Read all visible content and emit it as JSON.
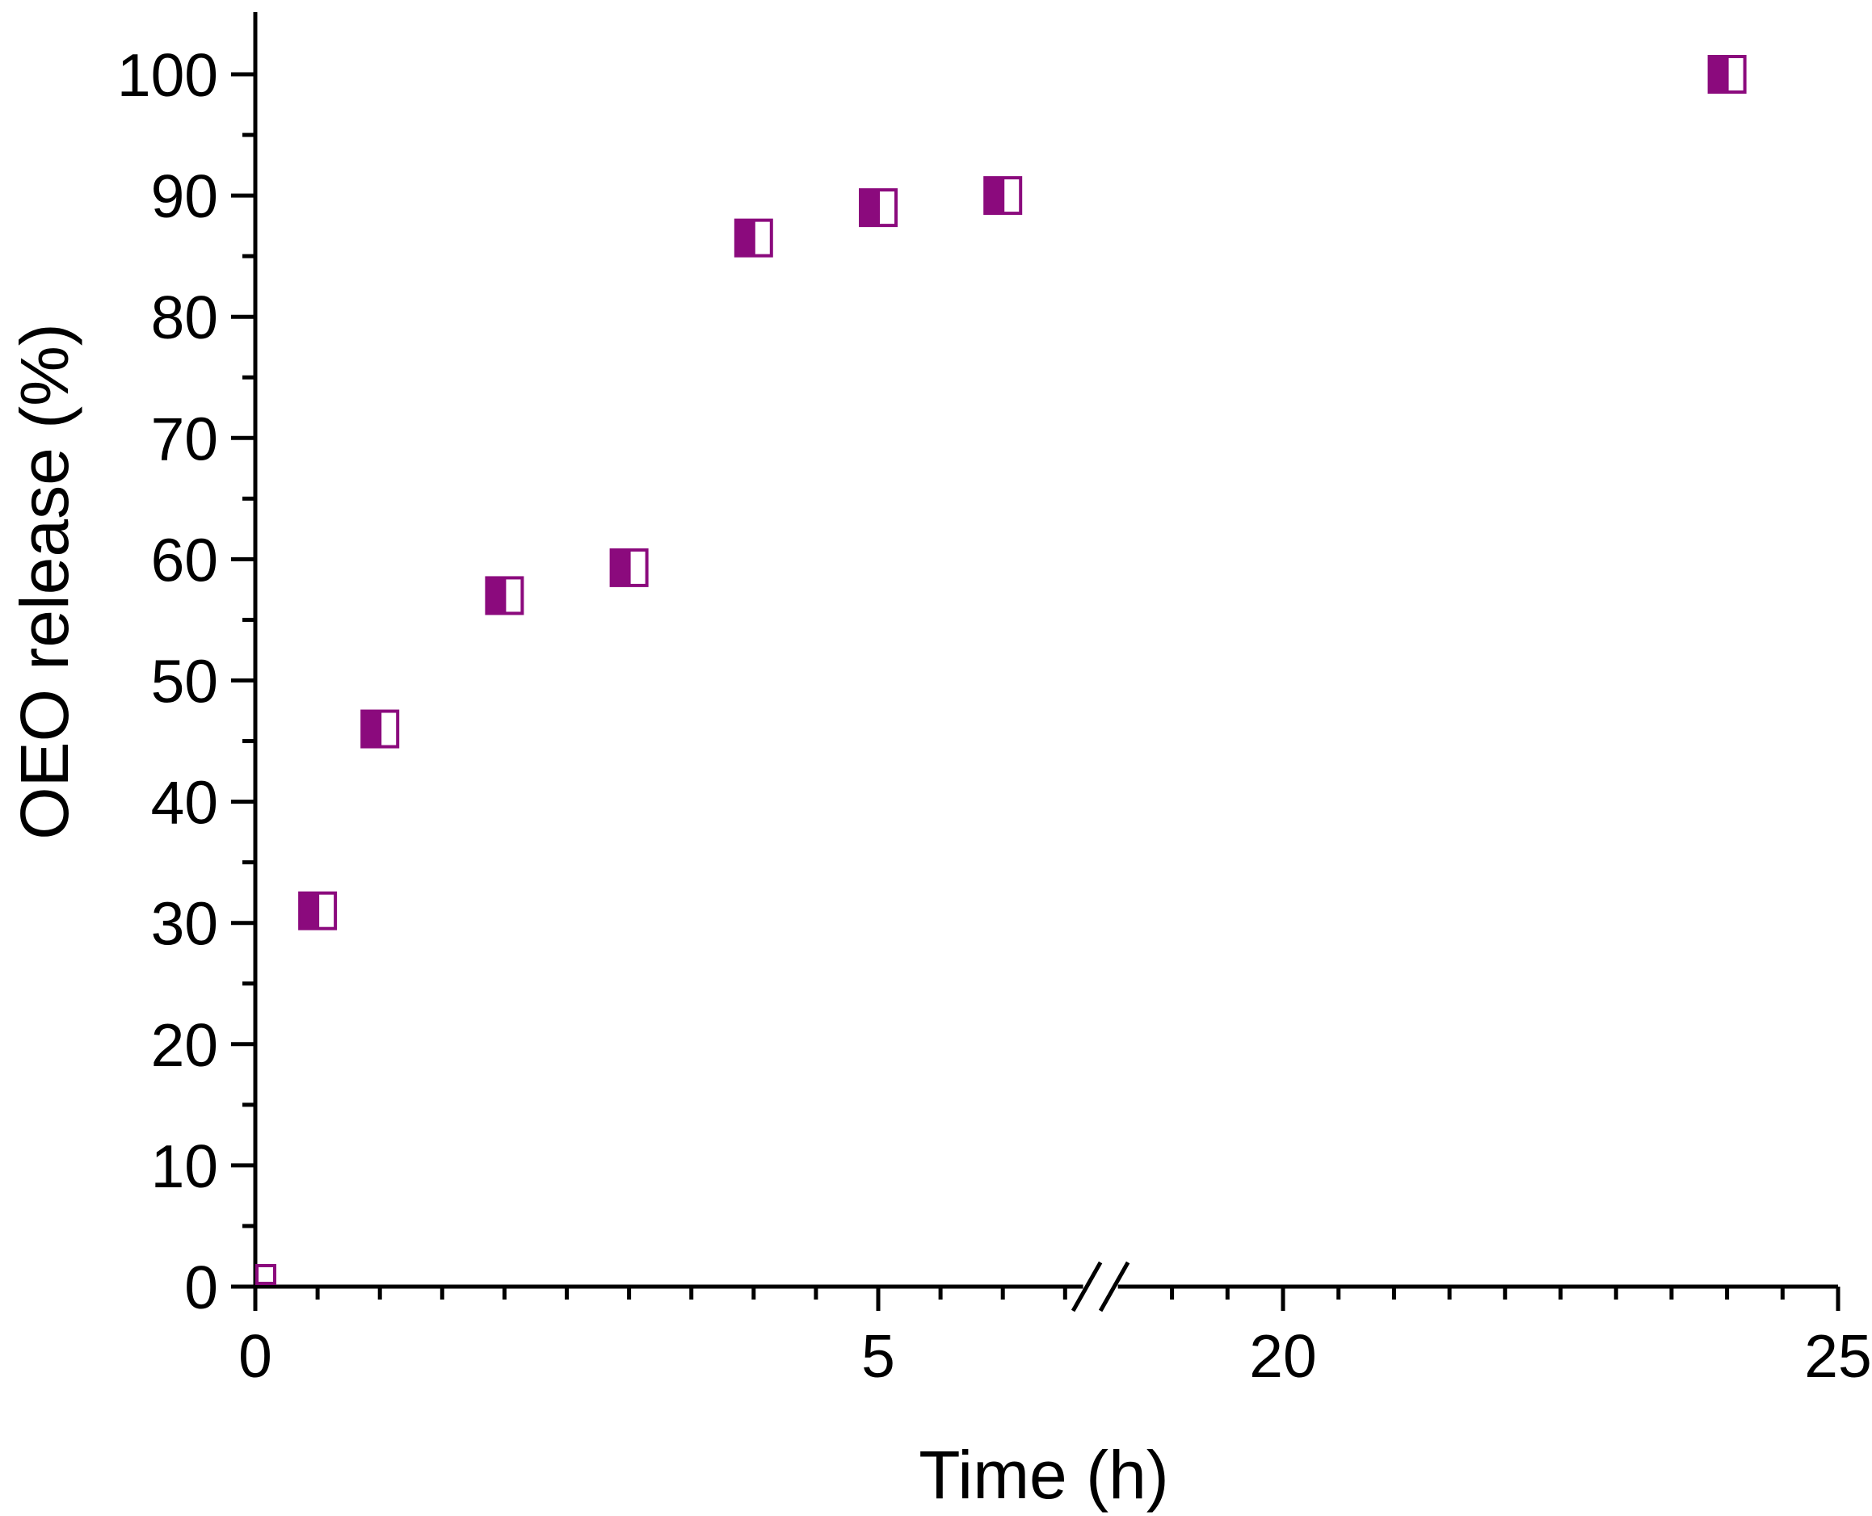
{
  "chart_data": {
    "type": "scatter",
    "title": "",
    "xlabel": "Time (h)",
    "ylabel": "OEO release (%)",
    "x_axis": {
      "broken": true,
      "segments": [
        {
          "range": [
            0,
            6.8
          ],
          "ticks": [
            0,
            5
          ],
          "tick_labels": [
            "0",
            "5"
          ]
        },
        {
          "range": [
            18.6,
            25
          ],
          "ticks": [
            20,
            25
          ],
          "tick_labels": [
            "20",
            "25"
          ]
        }
      ]
    },
    "ylim": [
      0,
      105
    ],
    "y_ticks": [
      0,
      10,
      20,
      30,
      40,
      50,
      60,
      70,
      80,
      90,
      100
    ],
    "y_tick_labels": [
      "0",
      "10",
      "20",
      "30",
      "40",
      "50",
      "60",
      "70",
      "80",
      "90",
      "100"
    ],
    "grid": false,
    "legend": "none",
    "marker": "half-filled square",
    "color": "#8B0A7D",
    "series": [
      {
        "x": [
          0,
          0.5,
          1,
          2,
          3,
          4,
          5,
          6,
          24
        ],
        "y": [
          0,
          31,
          46,
          57,
          59.3,
          86.5,
          89,
          90,
          100
        ]
      }
    ]
  }
}
